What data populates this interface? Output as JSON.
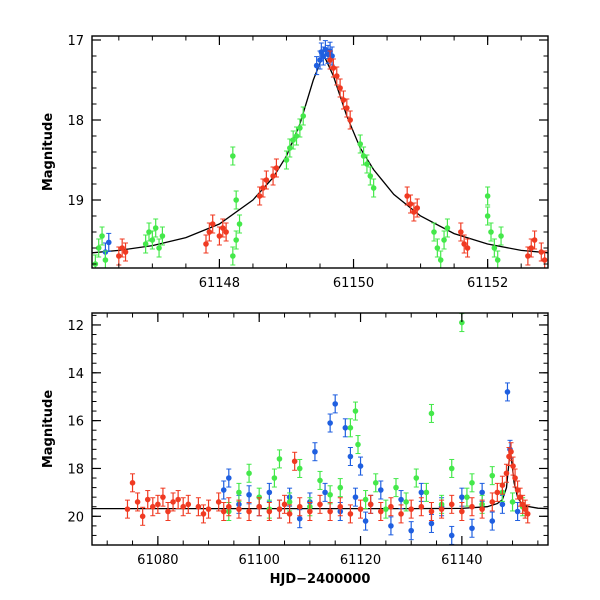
{
  "chart_data": [
    {
      "type": "scatter",
      "panel": "top",
      "title": "",
      "xlabel": "",
      "ylabel": "Magnitude",
      "xlim": [
        61146.1,
        61152.9
      ],
      "ylim": [
        19.85,
        16.95
      ],
      "y_inverted": true,
      "xticks": [
        61148,
        61150,
        61152
      ],
      "xtick_labels": [
        "61148",
        "61150",
        "61152"
      ],
      "yticks": [
        17,
        18,
        19
      ],
      "ytick_labels": [
        "17",
        "18",
        "19"
      ],
      "model_curve": {
        "name": "microlensing model",
        "color": "#000000",
        "x": [
          61146.1,
          61146.5,
          61147.0,
          61147.5,
          61148.0,
          61148.5,
          61148.8,
          61149.0,
          61149.2,
          61149.4,
          61149.55,
          61149.7,
          61149.9,
          61150.1,
          61150.3,
          61150.6,
          61151.0,
          61151.5,
          61152.0,
          61152.5,
          61152.9
        ],
        "y": [
          19.66,
          19.63,
          19.57,
          19.47,
          19.3,
          19.0,
          18.72,
          18.45,
          18.05,
          17.5,
          17.18,
          17.45,
          17.95,
          18.35,
          18.62,
          18.93,
          19.2,
          19.42,
          19.55,
          19.63,
          19.66
        ]
      },
      "series": [
        {
          "name": "blue",
          "color": "#1f5fe0",
          "points": [
            [
              61146.3,
              19.65
            ],
            [
              61146.35,
              19.53
            ],
            [
              61149.45,
              17.32
            ],
            [
              61149.5,
              17.25
            ],
            [
              61149.52,
              17.15
            ],
            [
              61149.55,
              17.2
            ],
            [
              61149.58,
              17.12
            ],
            [
              61149.62,
              17.18
            ],
            [
              61149.65,
              17.14
            ],
            [
              61149.68,
              17.2
            ]
          ]
        },
        {
          "name": "red",
          "color": "#f03a22",
          "points": [
            [
              61146.5,
              19.7
            ],
            [
              61146.55,
              19.6
            ],
            [
              61146.6,
              19.65
            ],
            [
              61147.8,
              19.55
            ],
            [
              61147.85,
              19.4
            ],
            [
              61147.9,
              19.3
            ],
            [
              61148.0,
              19.45
            ],
            [
              61148.05,
              19.35
            ],
            [
              61148.1,
              19.4
            ],
            [
              61148.6,
              18.95
            ],
            [
              61148.65,
              18.85
            ],
            [
              61148.7,
              18.75
            ],
            [
              61148.8,
              18.7
            ],
            [
              61148.85,
              18.6
            ],
            [
              61149.65,
              17.25
            ],
            [
              61149.7,
              17.35
            ],
            [
              61149.75,
              17.45
            ],
            [
              61149.8,
              17.6
            ],
            [
              61149.85,
              17.75
            ],
            [
              61149.9,
              17.85
            ],
            [
              61149.95,
              18.0
            ],
            [
              61150.8,
              18.95
            ],
            [
              61150.85,
              19.05
            ],
            [
              61150.9,
              19.15
            ],
            [
              61150.95,
              19.1
            ],
            [
              61151.6,
              19.4
            ],
            [
              61151.65,
              19.55
            ],
            [
              61151.7,
              19.6
            ],
            [
              61152.6,
              19.7
            ],
            [
              61152.65,
              19.6
            ],
            [
              61152.7,
              19.5
            ],
            [
              61152.8,
              19.65
            ],
            [
              61152.85,
              19.75
            ]
          ]
        },
        {
          "name": "green",
          "color": "#44e84a",
          "points": [
            [
              61146.15,
              19.8
            ],
            [
              61146.2,
              19.6
            ],
            [
              61146.25,
              19.45
            ],
            [
              61146.3,
              19.75
            ],
            [
              61146.9,
              19.55
            ],
            [
              61146.95,
              19.4
            ],
            [
              61147.0,
              19.5
            ],
            [
              61147.05,
              19.35
            ],
            [
              61147.1,
              19.6
            ],
            [
              61147.15,
              19.45
            ],
            [
              61148.2,
              19.7
            ],
            [
              61148.25,
              19.5
            ],
            [
              61148.3,
              19.3
            ],
            [
              61148.2,
              18.45
            ],
            [
              61148.25,
              19.0
            ],
            [
              61149.0,
              18.5
            ],
            [
              61149.05,
              18.35
            ],
            [
              61149.1,
              18.25
            ],
            [
              61149.15,
              18.2
            ],
            [
              61149.2,
              18.1
            ],
            [
              61149.25,
              17.95
            ],
            [
              61150.1,
              18.3
            ],
            [
              61150.15,
              18.45
            ],
            [
              61150.2,
              18.55
            ],
            [
              61150.25,
              18.7
            ],
            [
              61150.3,
              18.85
            ],
            [
              61151.2,
              19.4
            ],
            [
              61151.25,
              19.6
            ],
            [
              61151.3,
              19.75
            ],
            [
              61151.35,
              19.5
            ],
            [
              61151.4,
              19.35
            ],
            [
              61152.0,
              19.2
            ],
            [
              61152.05,
              19.4
            ],
            [
              61152.1,
              19.6
            ],
            [
              61152.15,
              19.75
            ],
            [
              61152.2,
              19.45
            ],
            [
              61152.0,
              18.95
            ]
          ]
        }
      ]
    },
    {
      "type": "scatter",
      "panel": "bottom",
      "title": "",
      "xlabel": "HJD−2400000",
      "ylabel": "Magnitude",
      "xlim": [
        61067,
        61157
      ],
      "ylim": [
        21.2,
        11.5
      ],
      "y_inverted": true,
      "xticks": [
        61080,
        61100,
        61120,
        61140
      ],
      "xtick_labels": [
        "61080",
        "61100",
        "61120",
        "61140"
      ],
      "yticks": [
        12,
        14,
        16,
        18,
        20
      ],
      "ytick_labels": [
        "12",
        "14",
        "16",
        "18",
        "20"
      ],
      "model_curve": {
        "name": "microlensing model",
        "color": "#000000",
        "x": [
          61067,
          61100,
          61130,
          61140,
          61145,
          61147,
          61148,
          61148.8,
          61149.55,
          61150.3,
          61151,
          61152,
          61155,
          61157
        ],
        "y": [
          19.68,
          19.68,
          19.68,
          19.67,
          19.6,
          19.47,
          19.3,
          18.8,
          17.18,
          18.6,
          19.2,
          19.55,
          19.66,
          19.68
        ]
      },
      "series": [
        {
          "name": "blue",
          "color": "#1f5fe0",
          "points": [
            [
              61093,
              18.9
            ],
            [
              61094,
              18.4
            ],
            [
              61096,
              19.5
            ],
            [
              61098,
              19.1
            ],
            [
              61100,
              19.6
            ],
            [
              61102,
              19.0
            ],
            [
              61104,
              19.7
            ],
            [
              61106,
              19.2
            ],
            [
              61108,
              20.1
            ],
            [
              61110,
              19.4
            ],
            [
              61111,
              17.3
            ],
            [
              61113,
              19.0
            ],
            [
              61114,
              16.1
            ],
            [
              61115,
              15.3
            ],
            [
              61116,
              19.8
            ],
            [
              61117,
              16.3
            ],
            [
              61118,
              17.5
            ],
            [
              61119,
              19.2
            ],
            [
              61120,
              17.9
            ],
            [
              61121,
              20.2
            ],
            [
              61122,
              19.5
            ],
            [
              61124,
              18.9
            ],
            [
              61126,
              20.4
            ],
            [
              61128,
              19.3
            ],
            [
              61130,
              20.6
            ],
            [
              61132,
              19.0
            ],
            [
              61134,
              20.3
            ],
            [
              61136,
              19.6
            ],
            [
              61138,
              20.8
            ],
            [
              61140,
              19.2
            ],
            [
              61142,
              20.5
            ],
            [
              61144,
              19.0
            ],
            [
              61146,
              20.2
            ],
            [
              61148,
              19.5
            ],
            [
              61149,
              14.8
            ],
            [
              61149.5,
              17.2
            ],
            [
              61151,
              19.8
            ]
          ]
        },
        {
          "name": "green",
          "color": "#44e84a",
          "points": [
            [
              61094,
              19.8
            ],
            [
              61096,
              19.0
            ],
            [
              61098,
              18.2
            ],
            [
              61100,
              19.2
            ],
            [
              61102,
              19.7
            ],
            [
              61103,
              18.4
            ],
            [
              61104,
              17.6
            ],
            [
              61106,
              19.4
            ],
            [
              61108,
              18.0
            ],
            [
              61110,
              19.6
            ],
            [
              61112,
              18.5
            ],
            [
              61114,
              19.1
            ],
            [
              61116,
              18.8
            ],
            [
              61118,
              16.3
            ],
            [
              61119,
              15.6
            ],
            [
              61119.5,
              17.0
            ],
            [
              61121,
              19.3
            ],
            [
              61123,
              18.6
            ],
            [
              61125,
              19.7
            ],
            [
              61127,
              18.8
            ],
            [
              61129,
              19.4
            ],
            [
              61131,
              18.4
            ],
            [
              61133,
              19.0
            ],
            [
              61134,
              15.7
            ],
            [
              61136,
              19.5
            ],
            [
              61138,
              18.0
            ],
            [
              61140,
              11.9
            ],
            [
              61141,
              19.2
            ],
            [
              61142,
              18.6
            ],
            [
              61144,
              19.5
            ],
            [
              61146,
              18.3
            ],
            [
              61148,
              19.0
            ],
            [
              61150,
              19.4
            ],
            [
              61152,
              19.6
            ]
          ]
        },
        {
          "name": "red",
          "color": "#f03a22",
          "points": [
            [
              61074,
              19.7
            ],
            [
              61075,
              18.6
            ],
            [
              61076,
              19.4
            ],
            [
              61077,
              20.0
            ],
            [
              61078,
              19.3
            ],
            [
              61079,
              19.6
            ],
            [
              61080,
              19.5
            ],
            [
              61081,
              19.2
            ],
            [
              61082,
              19.8
            ],
            [
              61083,
              19.4
            ],
            [
              61084,
              19.3
            ],
            [
              61085,
              19.6
            ],
            [
              61086,
              19.5
            ],
            [
              61088,
              19.6
            ],
            [
              61089,
              19.9
            ],
            [
              61090,
              19.7
            ],
            [
              61092,
              19.4
            ],
            [
              61093,
              19.8
            ],
            [
              61094,
              19.6
            ],
            [
              61096,
              19.7
            ],
            [
              61098,
              19.8
            ],
            [
              61100,
              19.6
            ],
            [
              61102,
              19.8
            ],
            [
              61104,
              19.7
            ],
            [
              61105,
              19.5
            ],
            [
              61106,
              19.9
            ],
            [
              61107,
              17.7
            ],
            [
              61108,
              19.6
            ],
            [
              61110,
              19.8
            ],
            [
              61112,
              19.5
            ],
            [
              61114,
              19.8
            ],
            [
              61116,
              19.6
            ],
            [
              61118,
              19.9
            ],
            [
              61120,
              19.7
            ],
            [
              61122,
              19.5
            ],
            [
              61124,
              19.8
            ],
            [
              61126,
              19.6
            ],
            [
              61128,
              19.9
            ],
            [
              61130,
              19.7
            ],
            [
              61132,
              19.6
            ],
            [
              61134,
              19.8
            ],
            [
              61136,
              19.7
            ],
            [
              61138,
              19.5
            ],
            [
              61140,
              19.8
            ],
            [
              61142,
              19.6
            ],
            [
              61144,
              19.7
            ],
            [
              61146,
              19.4
            ],
            [
              61147,
              19.0
            ],
            [
              61148,
              18.7
            ],
            [
              61148.8,
              18.2
            ],
            [
              61149.3,
              17.5
            ],
            [
              61149.7,
              17.3
            ],
            [
              61150.1,
              17.9
            ],
            [
              61150.5,
              18.4
            ],
            [
              61151,
              18.9
            ],
            [
              61151.5,
              19.2
            ],
            [
              61152,
              19.5
            ],
            [
              61152.5,
              19.7
            ],
            [
              61153,
              19.9
            ]
          ]
        }
      ]
    }
  ]
}
